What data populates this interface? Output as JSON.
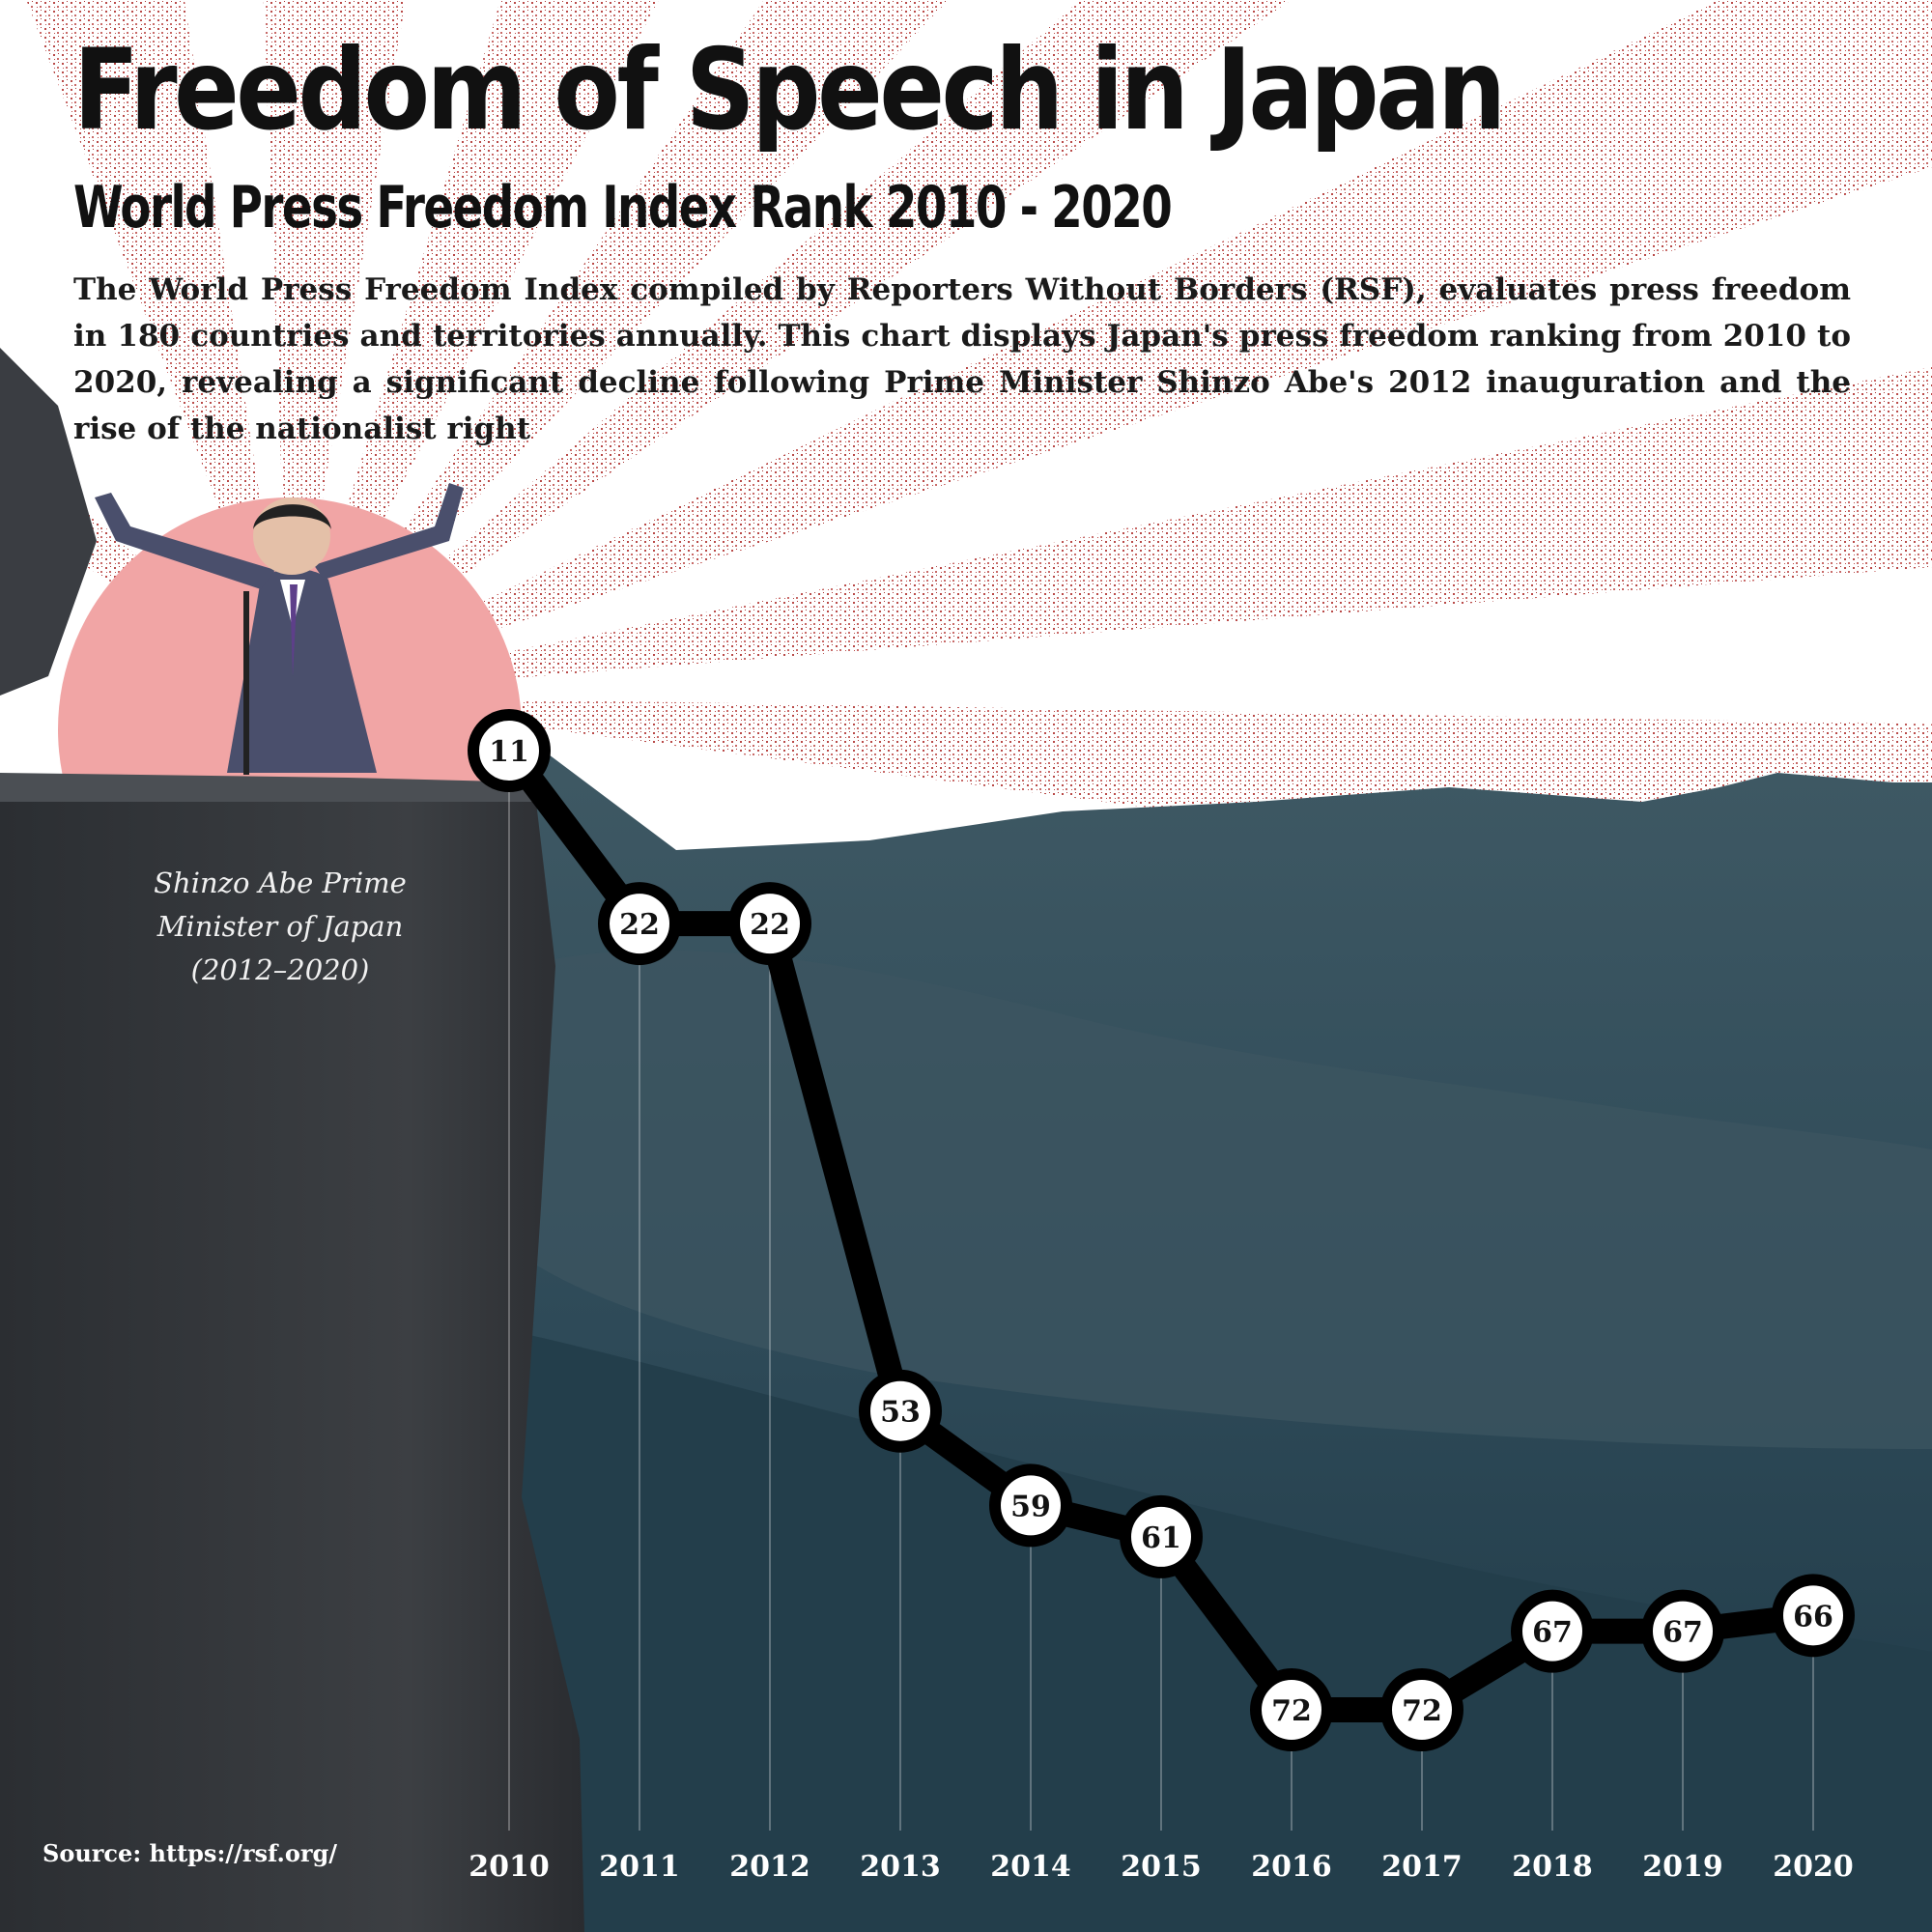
{
  "title": "Freedom of Speech in Japan",
  "subtitle": "World Press Freedom Index Rank 2010 - 2020",
  "description": "The World Press Freedom Index compiled by Reporters Without Borders (RSF), evaluates press freedom in 180 countries and territories annually. This chart displays Japan's press freedom ranking from 2010 to 2020, revealing a significant decline following Prime Minister Shinzo Abe's 2012 inauguration and the rise of the nationalist right",
  "caption": "Shinzo Abe Prime Minister of Japan (2012–2020)",
  "source": "Source: https://rsf.org/",
  "colors": {
    "sunburst": "#b94a48",
    "sun_disc": "#f1a5a5",
    "cliff": "#35383c",
    "water": "#2f4d5c",
    "line": "#000000",
    "marker_fill": "#ffffff"
  },
  "chart_data": {
    "type": "line",
    "x": [
      "2010",
      "2011",
      "2012",
      "2013",
      "2014",
      "2015",
      "2016",
      "2017",
      "2018",
      "2019",
      "2020"
    ],
    "series": [
      {
        "values": [
          11,
          22,
          22,
          53,
          59,
          61,
          72,
          72,
          67,
          67,
          66
        ]
      }
    ],
    "y_inverted": true,
    "data_labels": true,
    "grid": "vertical"
  }
}
